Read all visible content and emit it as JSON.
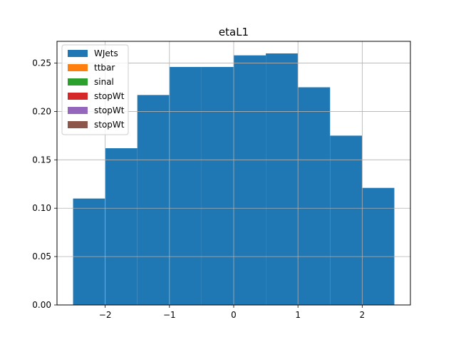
{
  "chart_data": {
    "type": "bar",
    "title": "etaL1",
    "xlabel": "",
    "ylabel": "",
    "xlim": [
      -2.75,
      2.75
    ],
    "ylim": [
      0,
      0.2725
    ],
    "grid": true,
    "legend_placement": "upper-left",
    "bin_edges": [
      -2.5,
      -2.0,
      -1.5,
      -1.0,
      -0.5,
      0.0,
      0.5,
      1.0,
      1.5,
      2.0,
      2.5
    ],
    "x_ticks": [
      -2,
      -1,
      0,
      1,
      2
    ],
    "x_tick_labels": [
      "−2",
      "−1",
      "0",
      "1",
      "2"
    ],
    "y_ticks": [
      0.0,
      0.05,
      0.1,
      0.15,
      0.2,
      0.25
    ],
    "y_tick_labels": [
      "0.00",
      "0.05",
      "0.10",
      "0.15",
      "0.20",
      "0.25"
    ],
    "series": [
      {
        "name": "WJets",
        "color": "#1f77b4",
        "values": [
          0.11,
          0.162,
          0.217,
          0.246,
          0.246,
          0.258,
          0.26,
          0.225,
          0.175,
          0.121
        ]
      },
      {
        "name": "ttbar",
        "color": "#ff7f0e",
        "values": []
      },
      {
        "name": "sinal",
        "color": "#2ca02c",
        "values": []
      },
      {
        "name": "stopWt",
        "color": "#d62728",
        "values": []
      },
      {
        "name": "stopWt",
        "color": "#9467bd",
        "values": []
      },
      {
        "name": "stopWt",
        "color": "#8c564b",
        "values": []
      }
    ]
  }
}
